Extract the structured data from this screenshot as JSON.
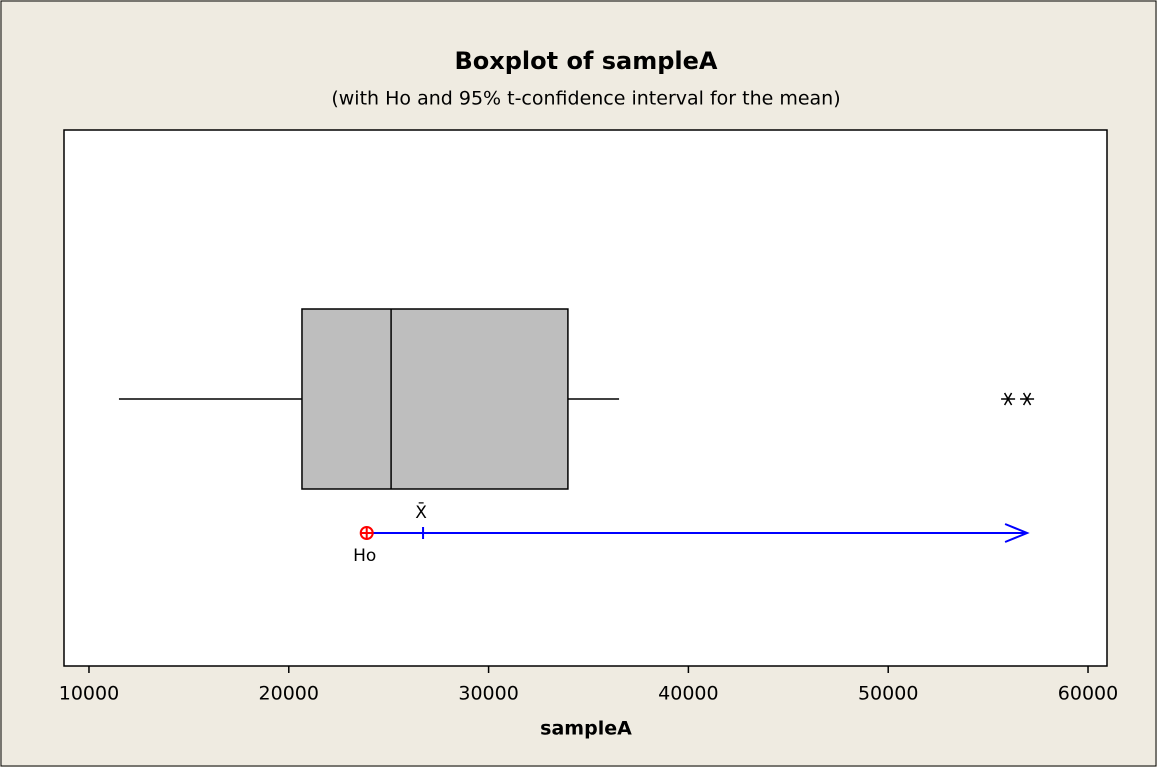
{
  "chart_data": {
    "type": "boxplot",
    "title": "Boxplot of sampleA",
    "subtitle": "(with Ho and 95% t-confidence interval for the mean)",
    "xlabel": "sampleA",
    "whisker_low": 11500,
    "q1": 20660,
    "median": 25120,
    "q3": 33970,
    "whisker_high": 36530,
    "outliers": [
      56000,
      56950
    ],
    "box_color": "#bebebe",
    "mean": 26720,
    "mean_label": "X̄",
    "ho": 23900,
    "ho_label": "Ho",
    "ho_color": "#ff0000",
    "ci": [
      24200,
      56950
    ],
    "ci_color": "#0000ff",
    "xlim": [
      8750,
      60950
    ],
    "xticks": [
      10000,
      20000,
      30000,
      40000,
      50000,
      60000
    ]
  }
}
